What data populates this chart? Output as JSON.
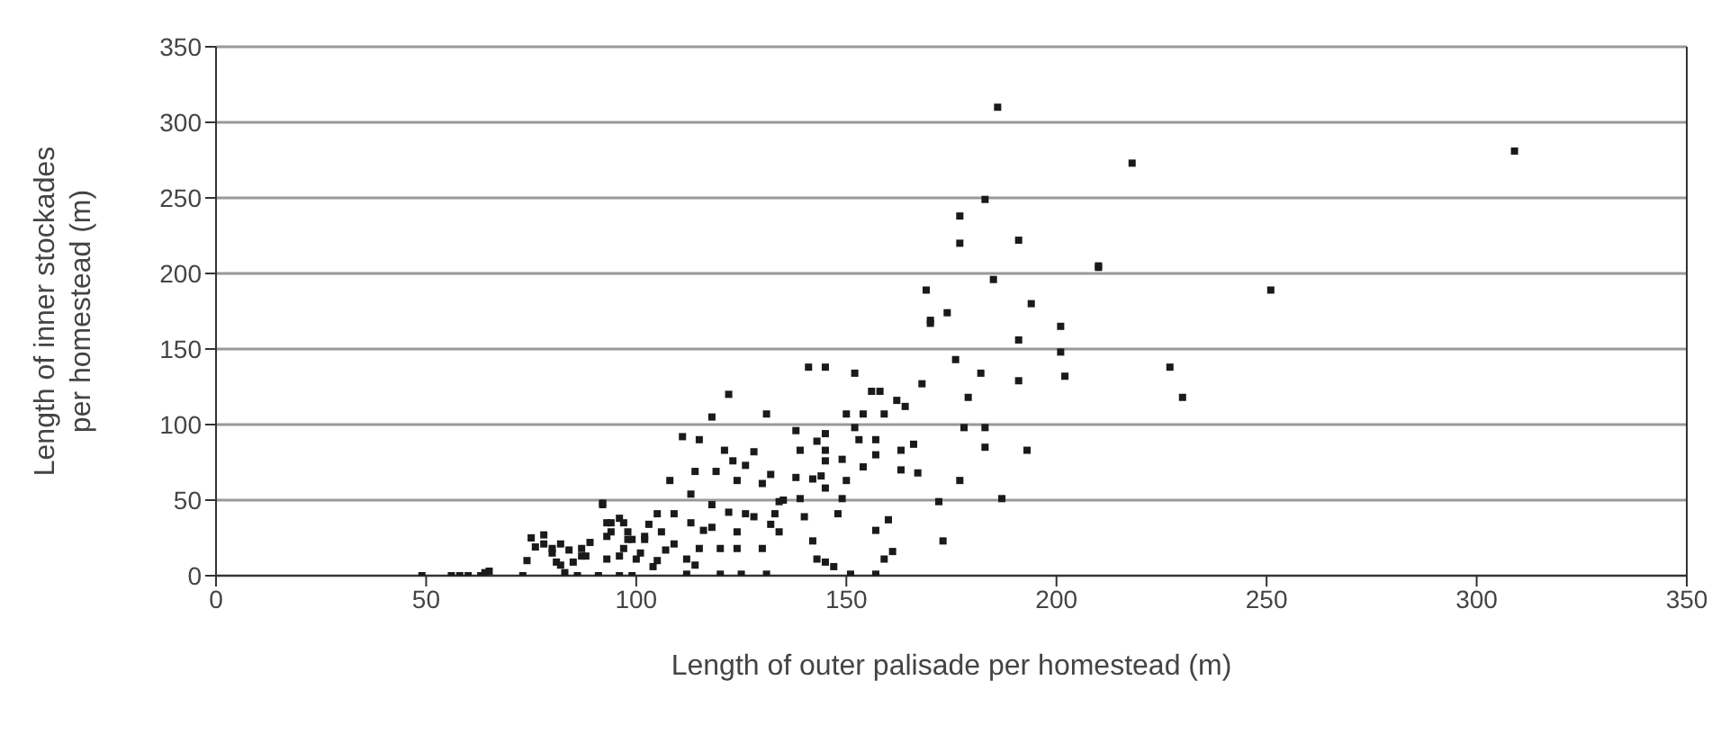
{
  "chart_data": {
    "type": "scatter",
    "xlabel": "Length of outer palisade per homestead (m)",
    "ylabel": "Length of inner stockades per homestead (m)",
    "x": [
      49,
      56,
      58,
      60,
      63,
      64,
      65,
      73,
      74,
      75,
      76,
      78,
      78,
      80,
      80,
      81,
      82,
      82,
      83,
      84,
      85,
      86,
      87,
      87,
      88,
      89,
      91,
      92,
      92,
      93,
      93,
      93,
      94,
      94,
      96,
      96,
      96,
      97,
      97,
      98,
      98,
      99,
      99,
      100,
      101,
      102,
      102,
      103,
      104,
      105,
      105,
      106,
      107,
      108,
      109,
      109,
      111,
      112,
      112,
      113,
      113,
      114,
      114,
      115,
      115,
      116,
      118,
      118,
      118,
      119,
      120,
      120,
      121,
      122,
      122,
      123,
      124,
      124,
      124,
      125,
      126,
      126,
      128,
      128,
      130,
      130,
      131,
      131,
      132,
      132,
      133,
      134,
      134,
      135,
      138,
      138,
      139,
      139,
      140,
      141,
      142,
      142,
      143,
      143,
      144,
      145,
      145,
      145,
      145,
      145,
      145,
      147,
      148,
      149,
      149,
      150,
      150,
      151,
      152,
      152,
      153,
      154,
      154,
      156,
      157,
      157,
      157,
      157,
      158,
      159,
      159,
      160,
      161,
      162,
      163,
      163,
      164,
      166,
      167,
      168,
      169,
      170,
      170,
      172,
      173,
      174,
      176,
      177,
      177,
      177,
      178,
      179,
      182,
      183,
      183,
      183,
      185,
      186,
      187,
      191,
      191,
      191,
      193,
      194,
      201,
      201,
      202,
      210,
      210,
      218,
      227,
      230,
      251,
      309
    ],
    "values": [
      0,
      0,
      0,
      0,
      0,
      2,
      3,
      0,
      10,
      25,
      19,
      27,
      21,
      18,
      15,
      9,
      21,
      7,
      2,
      17,
      9,
      0,
      18,
      13,
      13,
      22,
      0,
      48,
      47,
      26,
      35,
      11,
      35,
      29,
      38,
      13,
      0,
      18,
      35,
      29,
      24,
      24,
      0,
      11,
      15,
      26,
      24,
      34,
      6,
      41,
      10,
      29,
      17,
      63,
      41,
      21,
      92,
      11,
      1,
      54,
      35,
      7,
      69,
      90,
      18,
      30,
      105,
      47,
      32,
      69,
      18,
      1,
      83,
      120,
      42,
      76,
      63,
      18,
      29,
      1,
      73,
      41,
      82,
      39,
      61,
      18,
      107,
      1,
      67,
      34,
      41,
      49,
      29,
      50,
      96,
      65,
      83,
      51,
      39,
      138,
      64,
      23,
      89,
      11,
      66,
      138,
      76,
      83,
      94,
      58,
      9,
      6,
      41,
      51,
      77,
      63,
      107,
      1,
      134,
      98,
      90,
      72,
      107,
      122,
      30,
      80,
      90,
      1,
      122,
      107,
      11,
      37,
      16,
      116,
      70,
      83,
      112,
      87,
      68,
      127,
      189,
      167,
      169,
      49,
      23,
      174,
      143,
      238,
      220,
      63,
      98,
      118,
      134,
      249,
      98,
      85,
      196,
      310,
      51,
      222,
      156,
      129,
      83,
      180,
      165,
      148,
      132,
      204,
      205,
      273,
      138,
      118,
      189,
      281
    ],
    "color": "#1a1a1a",
    "marker": "square",
    "xlim": [
      0,
      350
    ],
    "xticks": [
      0,
      50,
      100,
      150,
      200,
      250,
      300,
      350
    ],
    "ylim": [
      0,
      350
    ],
    "yticks": [
      0,
      50,
      100,
      150,
      200,
      250,
      300,
      350
    ],
    "grid": "y"
  }
}
